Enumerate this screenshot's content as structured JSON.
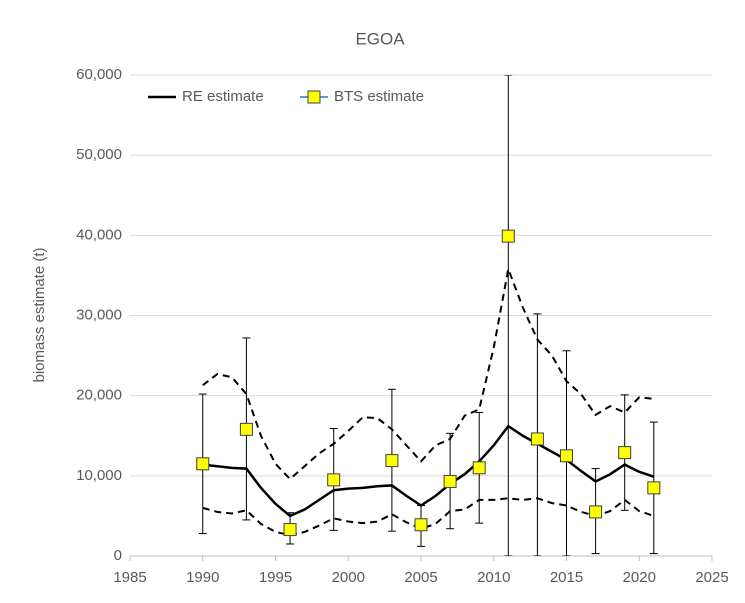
{
  "chart_data": {
    "type": "line",
    "title": "EGOA",
    "y_label": "biomass estimate (t)",
    "xlim": [
      1985,
      2025
    ],
    "xticks": [
      1985,
      1990,
      1995,
      2000,
      2005,
      2010,
      2015,
      2020,
      2025
    ],
    "ylim": [
      0,
      60000
    ],
    "yticks": [
      0,
      {
        "value": 10000,
        "label": "10,000"
      },
      {
        "value": 20000,
        "label": "20,000"
      },
      {
        "value": 30000,
        "label": "30,000"
      },
      {
        "value": 40000,
        "label": "40,000"
      },
      {
        "value": 50000,
        "label": "50,000"
      },
      {
        "value": 60000,
        "label": "60,000"
      }
    ],
    "grid": true,
    "legend": "top-left",
    "series": [
      {
        "name": "RE estimate",
        "color": "#000000",
        "style": "solid",
        "x": [
          1990,
          1991,
          1992,
          1993,
          1994,
          1995,
          1996,
          1997,
          1998,
          1999,
          2000,
          2001,
          2002,
          2003,
          2004,
          2005,
          2006,
          2007,
          2008,
          2009,
          2010,
          2011,
          2012,
          2013,
          2014,
          2015,
          2016,
          2017,
          2018,
          2019,
          2020,
          2021
        ],
        "values": [
          11400,
          11200,
          11000,
          10900,
          8500,
          6500,
          5000,
          5800,
          7000,
          8200,
          8400,
          8500,
          8700,
          8800,
          7500,
          6300,
          7500,
          9000,
          10200,
          11800,
          13800,
          16200,
          15000,
          14000,
          13000,
          12000,
          10600,
          9300,
          10200,
          11400,
          10500,
          9900
        ]
      },
      {
        "color": "#000000",
        "style": "dashed",
        "x": [
          1990,
          1991,
          1992,
          1993,
          1994,
          1995,
          1996,
          1997,
          1998,
          1999,
          2000,
          2001,
          2002,
          2003,
          2004,
          2005,
          2006,
          2007,
          2008,
          2009,
          2010,
          2011,
          2012,
          2013,
          2014,
          2015,
          2016,
          2017,
          2018,
          2019,
          2020,
          2021
        ],
        "values": [
          21300,
          22700,
          22300,
          20200,
          15000,
          11500,
          9600,
          11200,
          12800,
          14000,
          15600,
          17300,
          17200,
          15800,
          13800,
          11800,
          13800,
          14600,
          17500,
          18300,
          26000,
          35800,
          31000,
          27000,
          25000,
          21800,
          20200,
          17600,
          18700,
          17900,
          19800,
          19600
        ]
      },
      {
        "color": "#000000",
        "style": "dashed",
        "x": [
          1990,
          1991,
          1992,
          1993,
          1994,
          1995,
          1996,
          1997,
          1998,
          1999,
          2000,
          2001,
          2002,
          2003,
          2004,
          2005,
          2006,
          2007,
          2008,
          2009,
          2010,
          2011,
          2012,
          2013,
          2014,
          2015,
          2016,
          2017,
          2018,
          2019,
          2020,
          2021
        ],
        "values": [
          6000,
          5500,
          5300,
          5700,
          4000,
          3000,
          2600,
          3000,
          3800,
          4700,
          4300,
          4100,
          4300,
          5200,
          4200,
          3400,
          4000,
          5600,
          5800,
          7000,
          7000,
          7200,
          7000,
          7200,
          6600,
          6300,
          5500,
          5000,
          5600,
          7000,
          5600,
          5000
        ]
      },
      {
        "name": "BTS estimate",
        "color": "#ffff00",
        "line_color": "#5b9bd5",
        "style": "markers",
        "x": [
          1990,
          1993,
          1996,
          1999,
          2003,
          2005,
          2007,
          2009,
          2011,
          2013,
          2015,
          2017,
          2019,
          2021
        ],
        "values": [
          11500,
          15800,
          3300,
          9500,
          11900,
          3900,
          9300,
          11000,
          39900,
          14600,
          12500,
          5500,
          12900,
          8500
        ],
        "lower": [
          2800,
          4500,
          1500,
          3200,
          3100,
          1200,
          3400,
          4100,
          0,
          0,
          0,
          300,
          5700,
          300
        ],
        "upper": [
          20200,
          27200,
          5400,
          15900,
          20800,
          6300,
          15300,
          17900,
          60000,
          30200,
          25600,
          10900,
          20100,
          16700
        ]
      }
    ]
  }
}
